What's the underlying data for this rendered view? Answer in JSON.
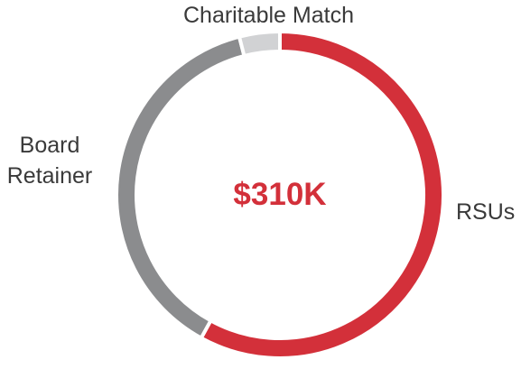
{
  "chart_data": {
    "type": "donut",
    "center_label": "$310K",
    "categories": [
      "RSUs",
      "Board Retainer",
      "Charitable Match"
    ],
    "values": [
      58,
      38,
      4
    ],
    "colors": [
      "#d3303a",
      "#8b8c8e",
      "#d1d2d4"
    ]
  }
}
